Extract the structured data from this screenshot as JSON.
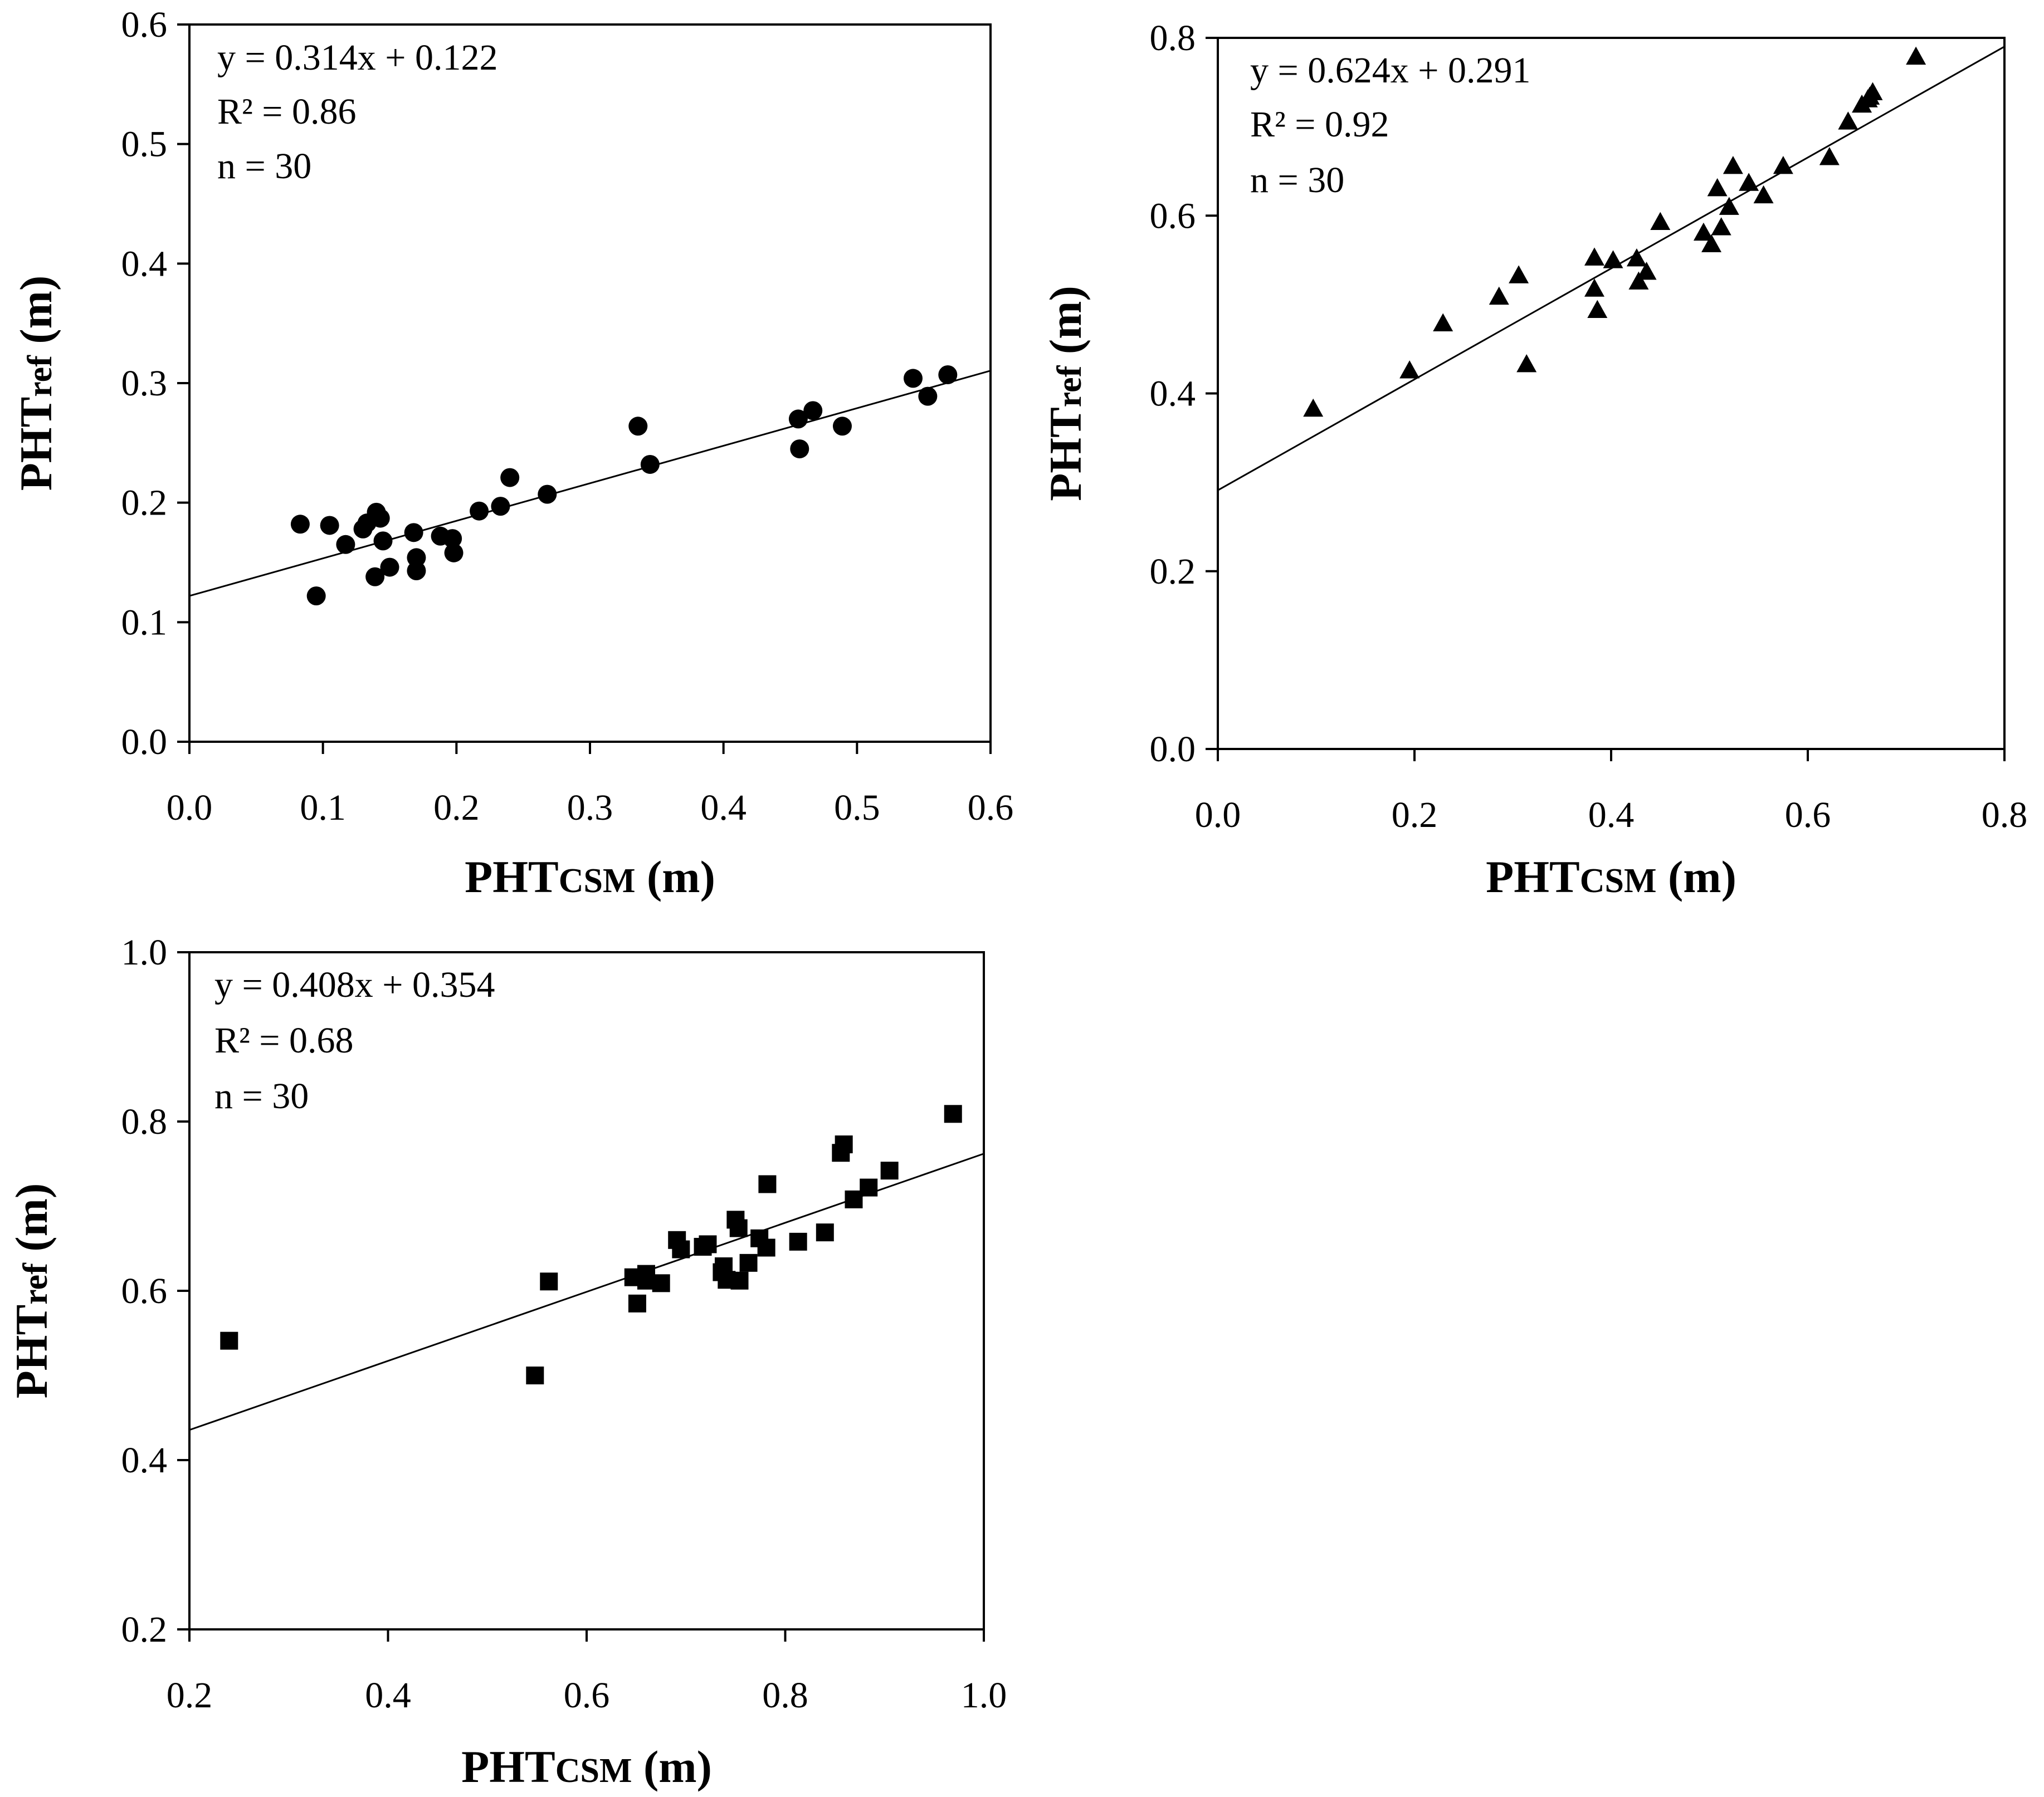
{
  "chart_data": [
    {
      "type": "scatter",
      "marker": "circle",
      "xlim": [
        0,
        0.6
      ],
      "ylim": [
        0,
        0.6
      ],
      "xticks": [
        "0.0",
        "0.1",
        "0.2",
        "0.3",
        "0.4",
        "0.5",
        "0.6"
      ],
      "yticks": [
        "0.0",
        "0.1",
        "0.2",
        "0.3",
        "0.4",
        "0.5",
        "0.6"
      ],
      "xtick_values": [
        0,
        0.1,
        0.2,
        0.3,
        0.4,
        0.5,
        0.6
      ],
      "ytick_values": [
        0,
        0.1,
        0.2,
        0.3,
        0.4,
        0.5,
        0.6
      ],
      "xlabel": {
        "main": "PHT",
        "sub": "CSM",
        "unit": " (m)"
      },
      "ylabel": {
        "main": "PHT",
        "sub": "ref",
        "unit": " (m)"
      },
      "annotations": [
        "y = 0.314x + 0.122",
        "R² = 0.86",
        "n = 30"
      ],
      "fit": {
        "slope": 0.314,
        "intercept": 0.122
      },
      "points": [
        {
          "x": 0.083,
          "y": 0.182
        },
        {
          "x": 0.095,
          "y": 0.122
        },
        {
          "x": 0.105,
          "y": 0.181
        },
        {
          "x": 0.117,
          "y": 0.165
        },
        {
          "x": 0.13,
          "y": 0.178
        },
        {
          "x": 0.133,
          "y": 0.183
        },
        {
          "x": 0.139,
          "y": 0.138
        },
        {
          "x": 0.14,
          "y": 0.192
        },
        {
          "x": 0.143,
          "y": 0.187
        },
        {
          "x": 0.145,
          "y": 0.168
        },
        {
          "x": 0.15,
          "y": 0.146
        },
        {
          "x": 0.168,
          "y": 0.175
        },
        {
          "x": 0.17,
          "y": 0.154
        },
        {
          "x": 0.17,
          "y": 0.143
        },
        {
          "x": 0.188,
          "y": 0.172
        },
        {
          "x": 0.197,
          "y": 0.17
        },
        {
          "x": 0.198,
          "y": 0.158
        },
        {
          "x": 0.217,
          "y": 0.193
        },
        {
          "x": 0.233,
          "y": 0.197
        },
        {
          "x": 0.24,
          "y": 0.221
        },
        {
          "x": 0.268,
          "y": 0.207
        },
        {
          "x": 0.336,
          "y": 0.264
        },
        {
          "x": 0.345,
          "y": 0.232
        },
        {
          "x": 0.456,
          "y": 0.27
        },
        {
          "x": 0.457,
          "y": 0.245
        },
        {
          "x": 0.467,
          "y": 0.277
        },
        {
          "x": 0.489,
          "y": 0.264
        },
        {
          "x": 0.542,
          "y": 0.304
        },
        {
          "x": 0.553,
          "y": 0.289
        },
        {
          "x": 0.568,
          "y": 0.307
        }
      ]
    },
    {
      "type": "scatter",
      "marker": "triangle",
      "xlim": [
        0,
        0.8
      ],
      "ylim": [
        0,
        0.8
      ],
      "xticks": [
        "0.0",
        "0.2",
        "0.4",
        "0.6",
        "0.8"
      ],
      "yticks": [
        "0.0",
        "0.2",
        "0.4",
        "0.6",
        "0.8"
      ],
      "xtick_values": [
        0,
        0.2,
        0.4,
        0.6,
        0.8
      ],
      "ytick_values": [
        0,
        0.2,
        0.4,
        0.6,
        0.8
      ],
      "xlabel": {
        "main": "PHT",
        "sub": "CSM",
        "unit": " (m)"
      },
      "ylabel": {
        "main": "PHT",
        "sub": "ref",
        "unit": " (m)"
      },
      "annotations": [
        "y = 0.624x + 0.291",
        "R² = 0.92",
        "n = 30"
      ],
      "fit": {
        "slope": 0.624,
        "intercept": 0.291
      },
      "points": [
        {
          "x": 0.097,
          "y": 0.382
        },
        {
          "x": 0.195,
          "y": 0.425
        },
        {
          "x": 0.229,
          "y": 0.478
        },
        {
          "x": 0.286,
          "y": 0.508
        },
        {
          "x": 0.306,
          "y": 0.532
        },
        {
          "x": 0.314,
          "y": 0.432
        },
        {
          "x": 0.383,
          "y": 0.552
        },
        {
          "x": 0.383,
          "y": 0.517
        },
        {
          "x": 0.386,
          "y": 0.493
        },
        {
          "x": 0.402,
          "y": 0.549
        },
        {
          "x": 0.426,
          "y": 0.551
        },
        {
          "x": 0.428,
          "y": 0.525
        },
        {
          "x": 0.436,
          "y": 0.536
        },
        {
          "x": 0.45,
          "y": 0.592
        },
        {
          "x": 0.494,
          "y": 0.58
        },
        {
          "x": 0.502,
          "y": 0.567
        },
        {
          "x": 0.508,
          "y": 0.63
        },
        {
          "x": 0.512,
          "y": 0.586
        },
        {
          "x": 0.52,
          "y": 0.609
        },
        {
          "x": 0.524,
          "y": 0.655
        },
        {
          "x": 0.54,
          "y": 0.636
        },
        {
          "x": 0.555,
          "y": 0.622
        },
        {
          "x": 0.575,
          "y": 0.655
        },
        {
          "x": 0.622,
          "y": 0.665
        },
        {
          "x": 0.641,
          "y": 0.705
        },
        {
          "x": 0.655,
          "y": 0.724
        },
        {
          "x": 0.661,
          "y": 0.73
        },
        {
          "x": 0.666,
          "y": 0.738
        },
        {
          "x": 0.71,
          "y": 0.778
        },
        {
          "x": 0.663,
          "y": 0.733
        }
      ]
    },
    {
      "type": "scatter",
      "marker": "square",
      "xlim": [
        0.2,
        1.0
      ],
      "ylim": [
        0.2,
        1.0
      ],
      "xticks": [
        "0.2",
        "0.4",
        "0.6",
        "0.8",
        "1.0"
      ],
      "yticks": [
        "0.2",
        "0.4",
        "0.6",
        "0.8",
        "1.0"
      ],
      "xtick_values": [
        0.2,
        0.4,
        0.6,
        0.8,
        1.0
      ],
      "ytick_values": [
        0.2,
        0.4,
        0.6,
        0.8,
        1.0
      ],
      "xlabel": {
        "main": "PHT",
        "sub": "CSM",
        "unit": " (m)"
      },
      "ylabel": {
        "main": "PHT",
        "sub": "ref",
        "unit": " (m)"
      },
      "annotations": [
        "y = 0.408x + 0.354",
        "R² = 0.68",
        "n = 30"
      ],
      "fit": {
        "slope": 0.408,
        "intercept": 0.354
      },
      "points": [
        {
          "x": 0.24,
          "y": 0.541
        },
        {
          "x": 0.548,
          "y": 0.5
        },
        {
          "x": 0.562,
          "y": 0.611
        },
        {
          "x": 0.647,
          "y": 0.616
        },
        {
          "x": 0.651,
          "y": 0.585
        },
        {
          "x": 0.66,
          "y": 0.62
        },
        {
          "x": 0.675,
          "y": 0.609
        },
        {
          "x": 0.691,
          "y": 0.66
        },
        {
          "x": 0.695,
          "y": 0.649
        },
        {
          "x": 0.717,
          "y": 0.652
        },
        {
          "x": 0.722,
          "y": 0.655
        },
        {
          "x": 0.738,
          "y": 0.629
        },
        {
          "x": 0.741,
          "y": 0.613
        },
        {
          "x": 0.75,
          "y": 0.684
        },
        {
          "x": 0.753,
          "y": 0.674
        },
        {
          "x": 0.754,
          "y": 0.612
        },
        {
          "x": 0.763,
          "y": 0.633
        },
        {
          "x": 0.774,
          "y": 0.662
        },
        {
          "x": 0.781,
          "y": 0.651
        },
        {
          "x": 0.782,
          "y": 0.726
        },
        {
          "x": 0.813,
          "y": 0.658
        },
        {
          "x": 0.84,
          "y": 0.669
        },
        {
          "x": 0.856,
          "y": 0.763
        },
        {
          "x": 0.859,
          "y": 0.773
        },
        {
          "x": 0.869,
          "y": 0.708
        },
        {
          "x": 0.884,
          "y": 0.722
        },
        {
          "x": 0.905,
          "y": 0.742
        },
        {
          "x": 0.969,
          "y": 0.809
        },
        {
          "x": 0.736,
          "y": 0.622
        },
        {
          "x": 0.66,
          "y": 0.612
        }
      ]
    }
  ]
}
